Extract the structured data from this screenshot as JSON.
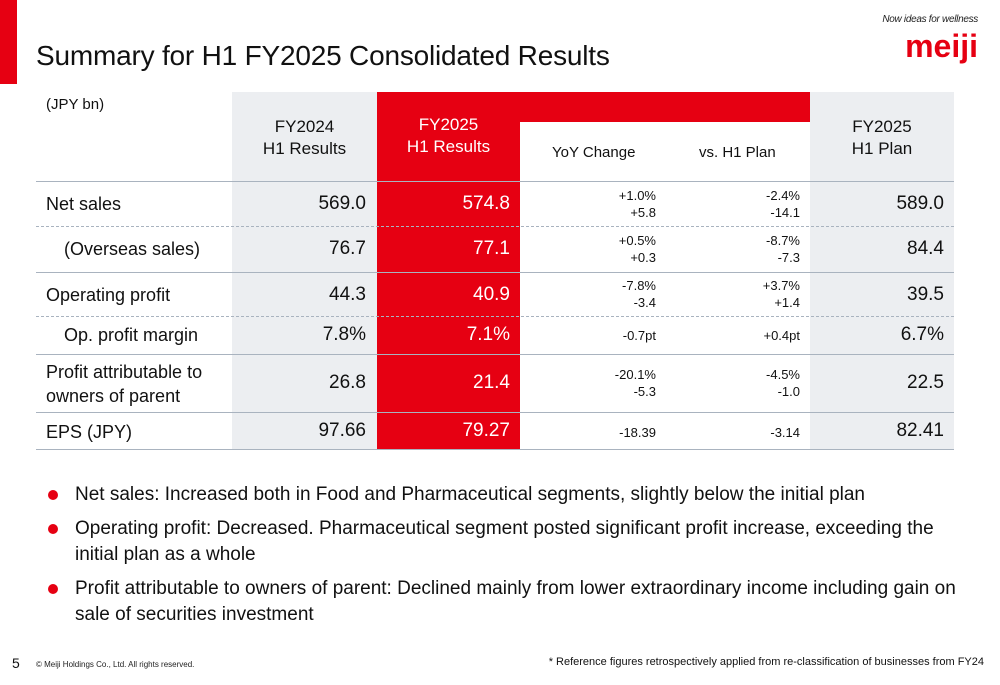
{
  "page": {
    "title": "Summary for H1 FY2025 Consolidated Results",
    "page_number": "5",
    "copyright": "© Meiji Holdings Co., Ltd. All rights reserved.",
    "footnote": "* Reference figures retrospectively applied from re-classification of businesses from FY24"
  },
  "logo": {
    "tagline": "Now ideas for wellness",
    "brand": "meiji",
    "color": "#e60012"
  },
  "table": {
    "unit": "(JPY bn)",
    "headers": {
      "fy2024_line1": "FY2024",
      "fy2024_line2": "H1 Results",
      "fy2025_line1": "FY2025",
      "fy2025_line2": "H1 Results",
      "yoy": "YoY Change",
      "vs_plan": "vs. H1 Plan",
      "plan_line1": "FY2025",
      "plan_line2": "H1 Plan"
    },
    "rows": [
      {
        "label": "Net sales",
        "fy2024": "569.0",
        "fy2025": "574.8",
        "yoy_pct": "+1.0%",
        "yoy_abs": "+5.8",
        "vs_pct": "-2.4%",
        "vs_abs": "-14.1",
        "plan": "589.0"
      },
      {
        "label": "(Overseas sales)",
        "fy2024": "76.7",
        "fy2025": "77.1",
        "yoy_pct": "+0.5%",
        "yoy_abs": "+0.3",
        "vs_pct": "-8.7%",
        "vs_abs": "-7.3",
        "plan": "84.4"
      },
      {
        "label": "Operating profit",
        "fy2024": "44.3",
        "fy2025": "40.9",
        "yoy_pct": "-7.8%",
        "yoy_abs": "-3.4",
        "vs_pct": "+3.7%",
        "vs_abs": "+1.4",
        "plan": "39.5"
      },
      {
        "label": "Op. profit margin",
        "fy2024": "7.8%",
        "fy2025": "7.1%",
        "yoy": "-0.7pt",
        "vs": "+0.4pt",
        "plan": "6.7%"
      },
      {
        "label_line1": "Profit attributable to",
        "label_line2": "owners of parent",
        "fy2024": "26.8",
        "fy2025": "21.4",
        "yoy_pct": "-20.1%",
        "yoy_abs": "-5.3",
        "vs_pct": "-4.5%",
        "vs_abs": "-1.0",
        "plan": "22.5"
      },
      {
        "label": "EPS (JPY)",
        "fy2024": "97.66",
        "fy2025": "79.27",
        "yoy": "-18.39",
        "vs": "-3.14",
        "plan": "82.41"
      }
    ]
  },
  "bullets": [
    "Net sales: Increased both in Food and Pharmaceutical segments, slightly below the initial plan",
    "Operating profit: Decreased. Pharmaceutical segment posted significant profit increase, exceeding the initial plan as a whole",
    "Profit attributable to owners of parent: Declined mainly from lower extraordinary income including gain on sale of securities investment"
  ]
}
